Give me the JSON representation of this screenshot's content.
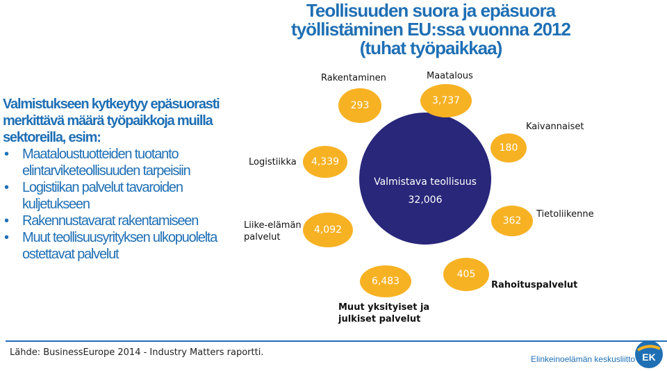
{
  "title": {
    "line1": "Teollisuuden suora ja epäsuora",
    "line2": "työllistäminen EU:ssa vuonna 2012",
    "line3": "(tuhat työpaikkaa)"
  },
  "left": {
    "intro": "Valmistukseen kytkeytyy epäsuorasti merkittävä määrä työpaikkoja muilla sektoreilla, esim:",
    "bullets": [
      "Maataloustuotteiden tuotanto elintarviketeollisuuden tarpeisiin",
      "Logistiikan palvelut tavaroiden kuljetukseen",
      "Rakennustavarat rakentamiseen",
      "Muut teollisuusyrityksen ulkopuolelta ostettavat palvelut"
    ]
  },
  "center": {
    "name": "Valmistava teollisuus",
    "value": "32,006"
  },
  "sectors": {
    "rakentaminen": {
      "label": "Rakentaminen",
      "value": "293"
    },
    "maatalous": {
      "label": "Maatalous",
      "value": "3,737"
    },
    "kaivannaiset": {
      "label": "Kaivannaiset",
      "value": "180"
    },
    "tietoliikenne": {
      "label": "Tietoliikenne",
      "value": "362"
    },
    "rahoitus": {
      "label": "Rahoituspalvelut",
      "value": "405"
    },
    "muut": {
      "label_line1": "Muut yksityiset ja",
      "label_line2": "julkiset palvelut",
      "value": "6,483"
    },
    "liike": {
      "label_line1": "Liike-elämän",
      "label_line2": "palvelut",
      "value": "4,092"
    },
    "logistiikka": {
      "label": "Logistiikka",
      "value": "4,339"
    }
  },
  "colors": {
    "title": "#1f6fb4",
    "center": "#29277a",
    "node": "#f7b224"
  },
  "footer": {
    "source": "Lähde: BusinessEurope 2014 - Industry Matters raportti.",
    "org": "Elinkeinoelämän keskusliitto",
    "logo_text": "EK"
  }
}
